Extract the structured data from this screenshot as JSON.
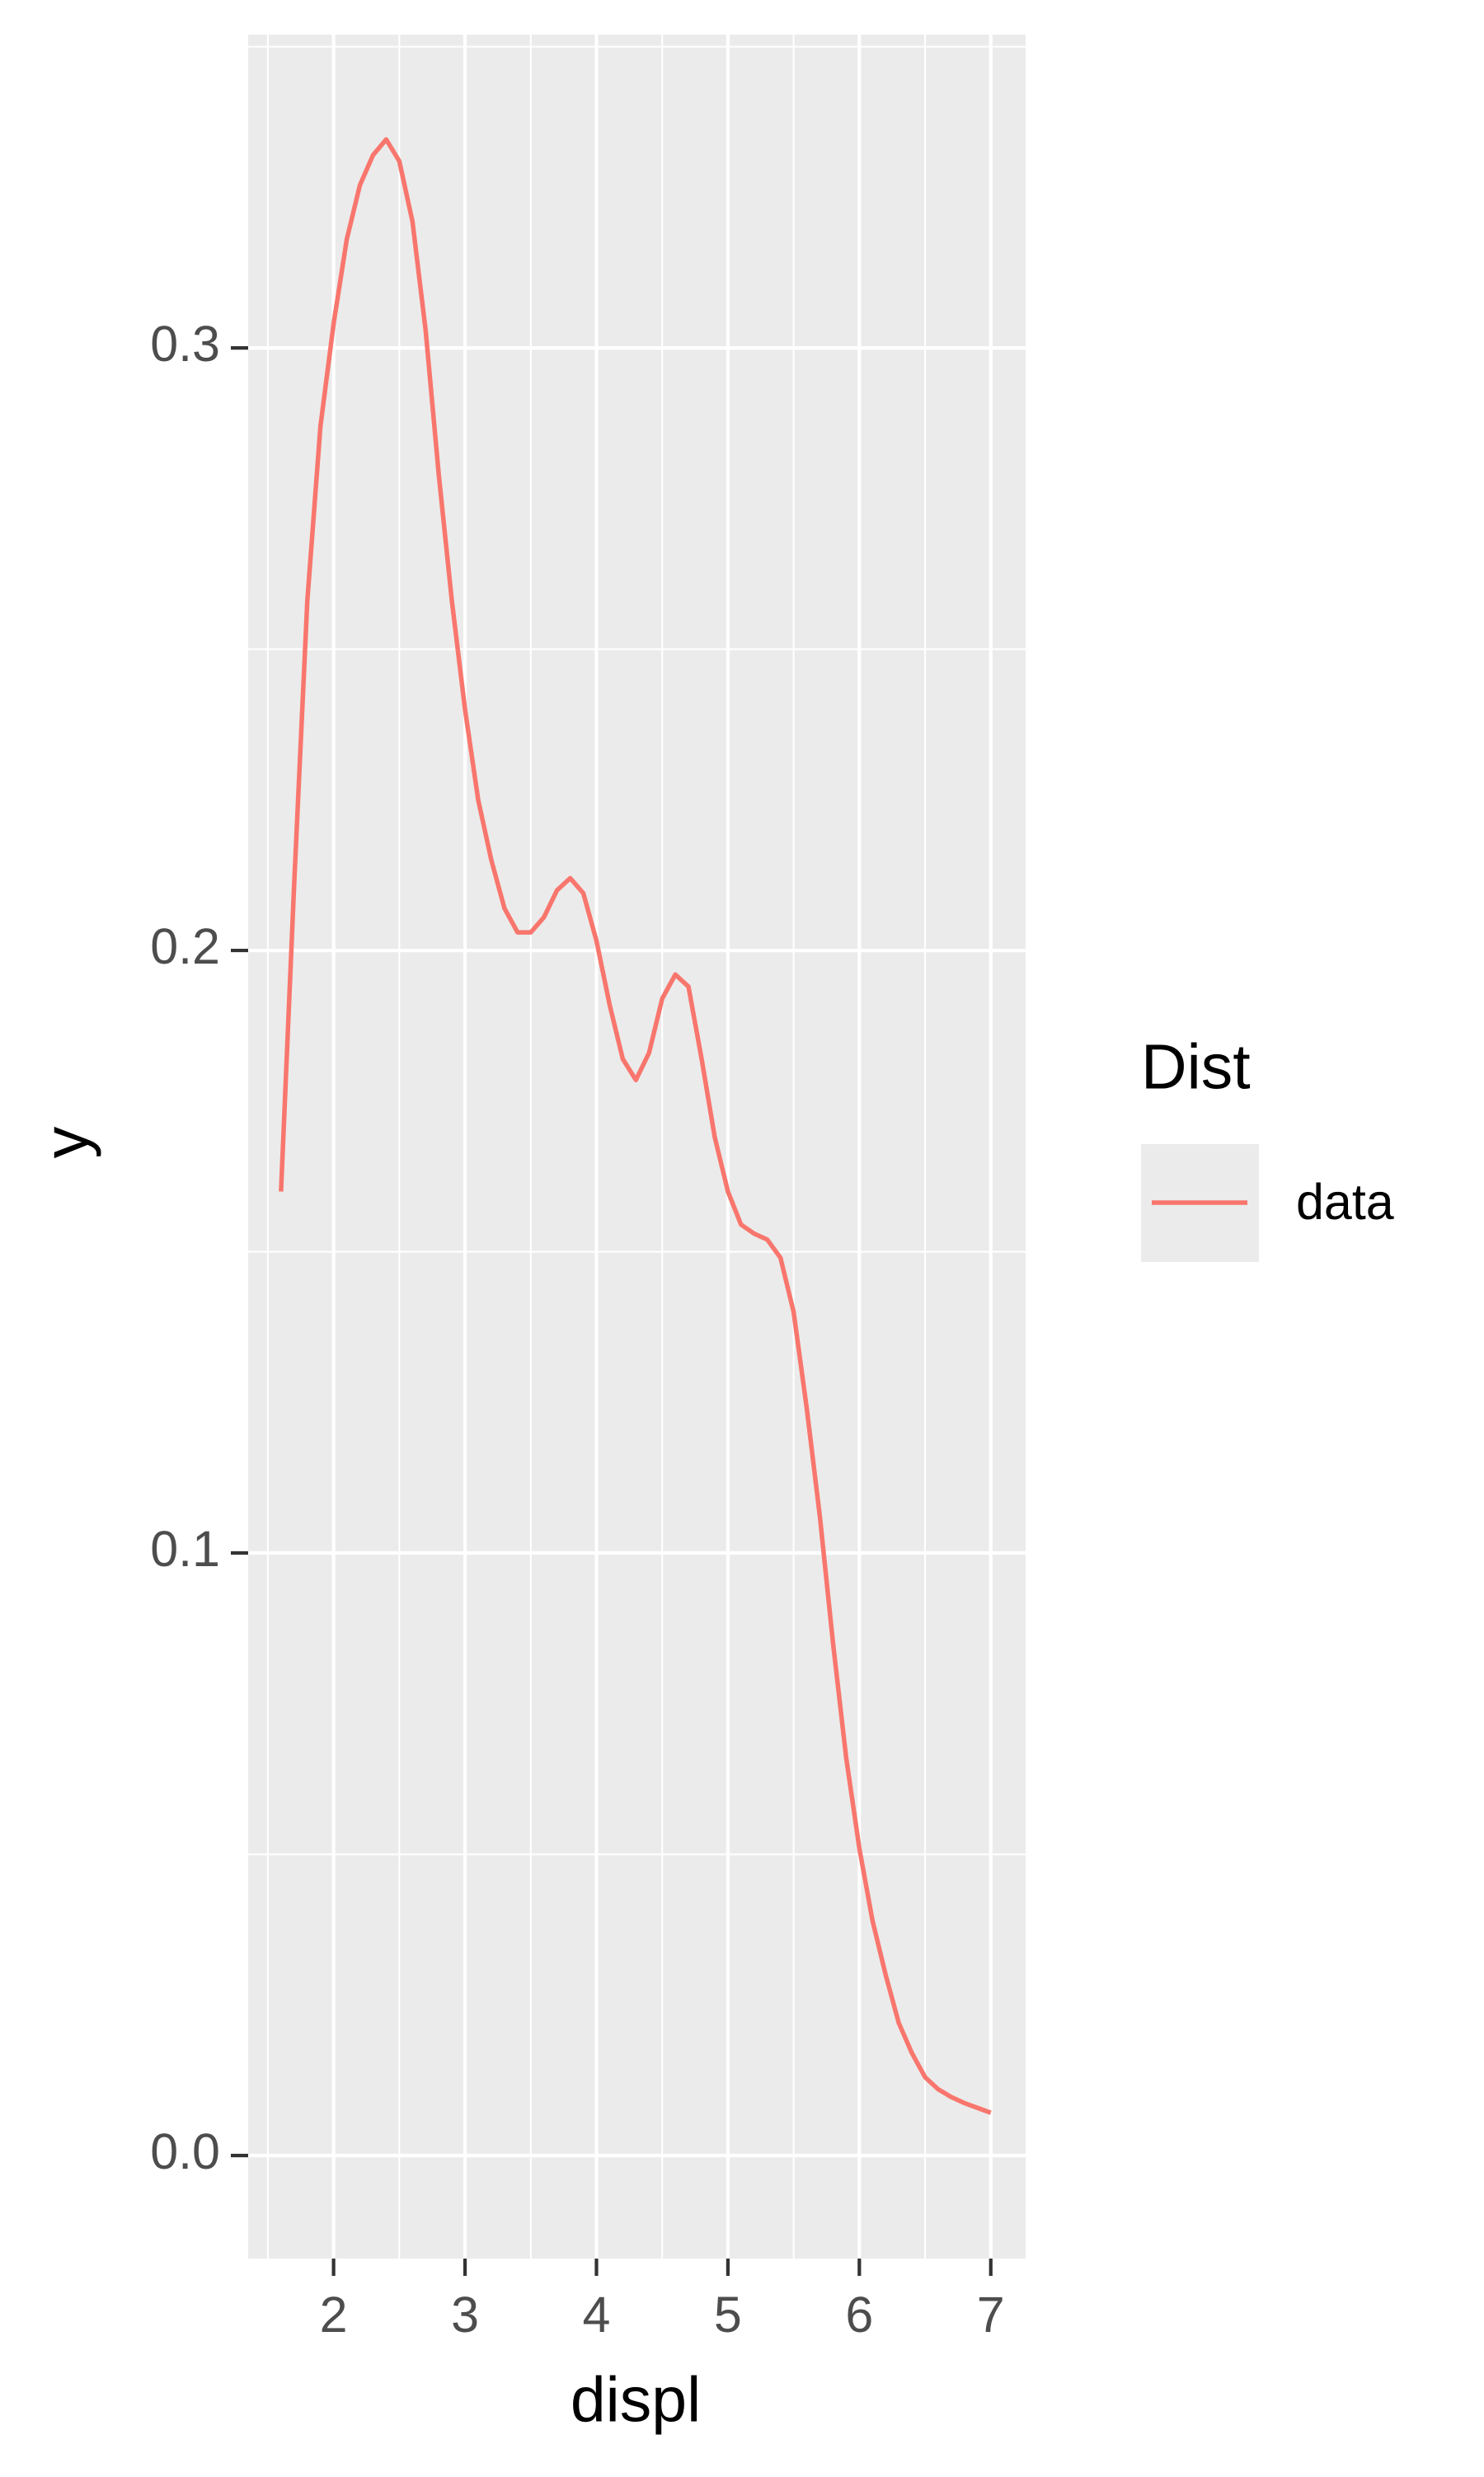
{
  "chart_data": {
    "type": "line",
    "x_label": "displ",
    "y_label": "y",
    "legend_title": "Dist",
    "x": [
      1.6,
      1.7,
      1.8,
      1.9,
      2.0,
      2.1,
      2.2,
      2.3,
      2.4,
      2.5,
      2.6,
      2.7,
      2.8,
      2.9,
      3.0,
      3.1,
      3.2,
      3.3,
      3.4,
      3.5,
      3.6,
      3.7,
      3.8,
      3.9,
      4.0,
      4.1,
      4.2,
      4.3,
      4.4,
      4.5,
      4.6,
      4.7,
      4.8,
      4.9,
      5.0,
      5.1,
      5.2,
      5.3,
      5.4,
      5.5,
      5.6,
      5.7,
      5.8,
      5.9,
      6.0,
      6.1,
      6.2,
      6.3,
      6.4,
      6.5,
      6.6,
      6.7,
      6.8,
      6.9,
      7.0
    ],
    "series": [
      {
        "name": "data",
        "color": "#F8766D",
        "values": [
          0.16,
          0.211,
          0.258,
          0.287,
          0.304,
          0.318,
          0.327,
          0.332,
          0.3346,
          0.331,
          0.321,
          0.303,
          0.279,
          0.258,
          0.24,
          0.225,
          0.215,
          0.207,
          0.203,
          0.203,
          0.2055,
          0.21,
          0.212,
          0.2095,
          0.2016,
          0.191,
          0.182,
          0.1785,
          0.183,
          0.192,
          0.196,
          0.194,
          0.182,
          0.169,
          0.16,
          0.1545,
          0.153,
          0.152,
          0.149,
          0.14,
          0.124,
          0.106,
          0.085,
          0.066,
          0.051,
          0.039,
          0.03,
          0.022,
          0.017,
          0.013,
          0.011,
          0.0097,
          0.0087,
          0.0079,
          0.0071
        ]
      }
    ],
    "xlim": [
      1.35,
      7.265
    ],
    "ylim": [
      -0.0171,
      0.352
    ],
    "xticks": [
      2,
      3,
      4,
      5,
      6,
      7
    ],
    "yticks": [
      {
        "value": 0,
        "label": "0.0"
      },
      0.1,
      0.2,
      0.3
    ],
    "grid": true
  }
}
